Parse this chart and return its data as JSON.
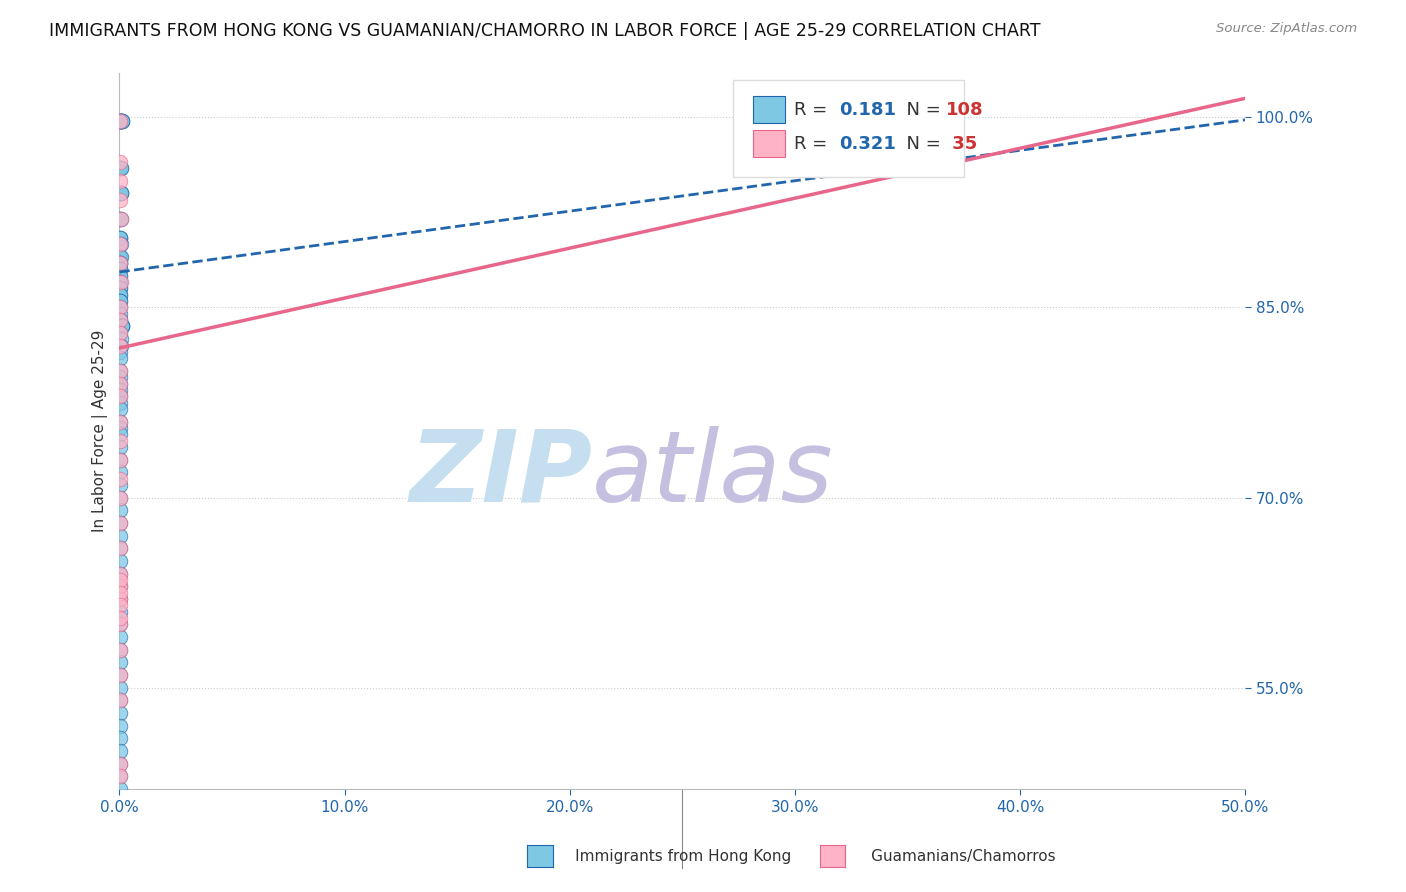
{
  "title": "IMMIGRANTS FROM HONG KONG VS GUAMANIAN/CHAMORRO IN LABOR FORCE | AGE 25-29 CORRELATION CHART",
  "source": "Source: ZipAtlas.com",
  "ylabel": "In Labor Force | Age 25-29",
  "x_min": 0.0,
  "x_max": 0.5,
  "y_min": 0.47,
  "y_max": 1.035,
  "x_tick_vals": [
    0.0,
    0.1,
    0.2,
    0.3,
    0.4,
    0.5
  ],
  "x_tick_labels": [
    "0.0%",
    "10.0%",
    "20.0%",
    "30.0%",
    "40.0%",
    "50.0%"
  ],
  "y_tick_vals": [
    0.55,
    0.7,
    0.85,
    1.0
  ],
  "y_tick_labels": [
    "55.0%",
    "70.0%",
    "85.0%",
    "100.0%"
  ],
  "gridline_y": [
    0.55,
    0.7,
    0.85,
    1.0
  ],
  "blue_color": "#7ec8e3",
  "pink_color": "#ffb3c6",
  "trend_blue_color": "#2166ac",
  "trend_pink_color": "#e8668a",
  "watermark_zip": "ZIP",
  "watermark_atlas": "atlas",
  "watermark_color_zip": "#c5dff0",
  "watermark_color_atlas": "#c5c0e0",
  "blue_scatter_x": [
    0.0002,
    0.0003,
    0.0004,
    0.0005,
    0.0006,
    0.0007,
    0.0008,
    0.0009,
    0.001,
    0.0011,
    0.0012,
    0.0003,
    0.0004,
    0.0005,
    0.0006,
    0.0003,
    0.0004,
    0.0005,
    0.0006,
    0.0007,
    0.0003,
    0.0004,
    0.0005,
    0.0002,
    0.0003,
    0.0004,
    0.0005,
    0.0003,
    0.0004,
    0.0005,
    0.0002,
    0.0003,
    0.0004,
    0.0002,
    0.0003,
    0.0003,
    0.0004,
    0.0002,
    0.0003,
    0.0004,
    0.0002,
    0.0003,
    0.0002,
    0.0003,
    0.0002,
    0.0002,
    0.0003,
    0.0002,
    0.0002,
    0.0003,
    0.0004,
    0.0005,
    0.0006,
    0.0007,
    0.0008,
    0.0009,
    0.001,
    0.0011,
    0.0012,
    0.0013,
    0.0004,
    0.0005,
    0.0006,
    0.0002,
    0.0003,
    0.0002,
    0.0003,
    0.0004,
    0.0002,
    0.0003,
    0.0002,
    0.0003,
    0.0002,
    0.0003,
    0.0002,
    0.0003,
    0.0002,
    0.0002,
    0.0002,
    0.0003,
    0.0002,
    0.0002,
    0.0002,
    0.0002,
    0.0002,
    0.0003,
    0.0002,
    0.0002,
    0.0002,
    0.0002,
    0.0002,
    0.0002,
    0.0002,
    0.0002,
    0.0002,
    0.0002,
    0.0002,
    0.0002,
    0.0002,
    0.0002,
    0.0002,
    0.0002,
    0.0002,
    0.0002,
    0.0002,
    0.0002,
    0.0002,
    0.0002
  ],
  "blue_scatter_y": [
    0.997,
    0.997,
    0.997,
    0.997,
    0.997,
    0.997,
    0.997,
    0.997,
    0.997,
    0.997,
    0.997,
    0.96,
    0.96,
    0.96,
    0.96,
    0.94,
    0.94,
    0.94,
    0.94,
    0.94,
    0.92,
    0.92,
    0.92,
    0.905,
    0.905,
    0.905,
    0.9,
    0.89,
    0.89,
    0.89,
    0.885,
    0.885,
    0.885,
    0.88,
    0.88,
    0.875,
    0.875,
    0.87,
    0.87,
    0.87,
    0.865,
    0.865,
    0.86,
    0.86,
    0.855,
    0.855,
    0.85,
    0.845,
    0.84,
    0.84,
    0.835,
    0.835,
    0.835,
    0.835,
    0.835,
    0.835,
    0.835,
    0.835,
    0.835,
    0.835,
    0.83,
    0.825,
    0.82,
    0.815,
    0.81,
    0.8,
    0.795,
    0.79,
    0.785,
    0.78,
    0.775,
    0.77,
    0.76,
    0.755,
    0.75,
    0.74,
    0.73,
    0.72,
    0.71,
    0.7,
    0.69,
    0.68,
    0.67,
    0.66,
    0.65,
    0.64,
    0.63,
    0.62,
    0.61,
    0.6,
    0.59,
    0.58,
    0.57,
    0.56,
    0.55,
    0.54,
    0.53,
    0.52,
    0.51,
    0.5,
    0.49,
    0.48,
    0.47,
    0.46,
    0.45,
    0.44,
    0.43,
    0.42
  ],
  "pink_scatter_x": [
    0.0002,
    0.0003,
    0.0003,
    0.0004,
    0.0005,
    0.0003,
    0.0004,
    0.0005,
    0.0003,
    0.0004,
    0.0003,
    0.0004,
    0.0003,
    0.0004,
    0.0004,
    0.0003,
    0.0004,
    0.0003,
    0.0003,
    0.0003,
    0.0003,
    0.0003,
    0.0003,
    0.0003,
    0.0003,
    0.0004,
    0.0003,
    0.0003,
    0.0003,
    0.0004,
    0.0003,
    0.0003,
    0.0003,
    0.0003,
    0.0003
  ],
  "pink_scatter_y": [
    0.997,
    0.965,
    0.95,
    0.935,
    0.92,
    0.9,
    0.885,
    0.87,
    0.85,
    0.84,
    0.83,
    0.82,
    0.8,
    0.79,
    0.78,
    0.76,
    0.745,
    0.73,
    0.715,
    0.7,
    0.68,
    0.66,
    0.64,
    0.63,
    0.62,
    0.6,
    0.58,
    0.56,
    0.54,
    0.635,
    0.625,
    0.615,
    0.605,
    0.49,
    0.48
  ],
  "blue_trend_x0": 0.0,
  "blue_trend_x1": 0.5,
  "blue_trend_y0": 0.878,
  "blue_trend_y1": 0.998,
  "pink_trend_x0": 0.0,
  "pink_trend_x1": 0.5,
  "pink_trend_y0": 0.818,
  "pink_trend_y1": 1.015,
  "legend_r1": "0.181",
  "legend_n1": "108",
  "legend_r2": "0.321",
  "legend_n2": " 35"
}
